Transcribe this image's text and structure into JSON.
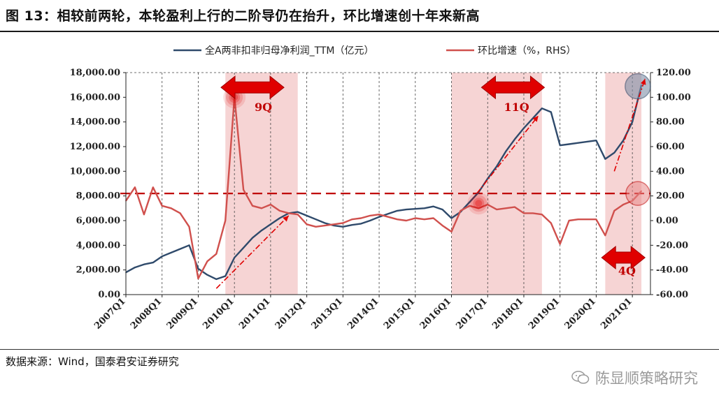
{
  "figure": {
    "title": "图 13：相较前两轮，本轮盈利上行的二阶导仍在抬升，环比增速创十年来新高",
    "source": "数据来源：Wind，国泰君安证券研究",
    "watermark": "陈显顺策略研究"
  },
  "colors": {
    "primary_series": "#2f4a6b",
    "secondary_series": "#d0504d",
    "shading": "#f4cccc",
    "accent": "#e00000"
  },
  "icons": [
    "double-arrow-icon",
    "wechat-icon"
  ],
  "chart_data": {
    "type": "line",
    "x_labels": [
      "2007Q1",
      "2008Q1",
      "2009Q1",
      "2010Q1",
      "2011Q1",
      "2012Q1",
      "2013Q1",
      "2014Q1",
      "2015Q1",
      "2016Q1",
      "2017Q1",
      "2018Q1",
      "2019Q1",
      "2020Q1",
      "2021Q1"
    ],
    "left_axis": {
      "min": 0,
      "max": 18000,
      "ticks": [
        "0.00",
        "2,000.00",
        "4,000.00",
        "6,000.00",
        "8,000.00",
        "10,000.00",
        "12,000.00",
        "14,000.00",
        "16,000.00",
        "18,000.00"
      ]
    },
    "right_axis": {
      "min": -60,
      "max": 120,
      "ticks": [
        "-60.00",
        "-40.00",
        "-20.00",
        "0.00",
        "20.00",
        "40.00",
        "60.00",
        "80.00",
        "100.00",
        "120.00"
      ]
    },
    "series": [
      {
        "name": "全A两非扣非归母净利润_TTM（亿元）",
        "axis": "left",
        "color": "#2f4a6b",
        "points": [
          [
            "2007.00",
            1800
          ],
          [
            "2007.25",
            2200
          ],
          [
            "2007.50",
            2450
          ],
          [
            "2007.75",
            2600
          ],
          [
            "2008.00",
            3100
          ],
          [
            "2008.25",
            3400
          ],
          [
            "2008.50",
            3700
          ],
          [
            "2008.75",
            4000
          ],
          [
            "2009.00",
            2100
          ],
          [
            "2009.25",
            1600
          ],
          [
            "2009.50",
            1250
          ],
          [
            "2009.75",
            1500
          ],
          [
            "2010.00",
            3000
          ],
          [
            "2010.25",
            3800
          ],
          [
            "2010.50",
            4600
          ],
          [
            "2010.75",
            5200
          ],
          [
            "2011.00",
            5700
          ],
          [
            "2011.25",
            6200
          ],
          [
            "2011.50",
            6600
          ],
          [
            "2011.75",
            6700
          ],
          [
            "2012.00",
            6400
          ],
          [
            "2012.25",
            6100
          ],
          [
            "2012.50",
            5800
          ],
          [
            "2012.75",
            5600
          ],
          [
            "2013.00",
            5500
          ],
          [
            "2013.25",
            5650
          ],
          [
            "2013.50",
            5750
          ],
          [
            "2013.75",
            6000
          ],
          [
            "2014.00",
            6300
          ],
          [
            "2014.25",
            6550
          ],
          [
            "2014.50",
            6800
          ],
          [
            "2014.75",
            6900
          ],
          [
            "2015.00",
            6950
          ],
          [
            "2015.25",
            7000
          ],
          [
            "2015.50",
            7150
          ],
          [
            "2015.75",
            6900
          ],
          [
            "2016.00",
            6200
          ],
          [
            "2016.25",
            6700
          ],
          [
            "2016.50",
            7500
          ],
          [
            "2016.75",
            8300
          ],
          [
            "2017.00",
            9400
          ],
          [
            "2017.25",
            10400
          ],
          [
            "2017.50",
            11600
          ],
          [
            "2017.75",
            12600
          ],
          [
            "2018.00",
            13500
          ],
          [
            "2018.25",
            14300
          ],
          [
            "2018.50",
            15100
          ],
          [
            "2018.75",
            14800
          ],
          [
            "2019.00",
            12100
          ],
          [
            "2019.25",
            12200
          ],
          [
            "2019.50",
            12300
          ],
          [
            "2019.75",
            12400
          ],
          [
            "2020.00",
            12500
          ],
          [
            "2020.25",
            11000
          ],
          [
            "2020.50",
            11500
          ],
          [
            "2020.75",
            12500
          ],
          [
            "2021.00",
            14000
          ],
          [
            "2021.25",
            17000
          ]
        ]
      },
      {
        "name": "环比增速（%，RHS）",
        "axis": "right",
        "color": "#d0504d",
        "points": [
          [
            "2007.00",
            16
          ],
          [
            "2007.25",
            27
          ],
          [
            "2007.50",
            5
          ],
          [
            "2007.75",
            27
          ],
          [
            "2008.00",
            12
          ],
          [
            "2008.25",
            10
          ],
          [
            "2008.50",
            6
          ],
          [
            "2008.75",
            -5
          ],
          [
            "2009.00",
            -47
          ],
          [
            "2009.25",
            -33
          ],
          [
            "2009.50",
            -27
          ],
          [
            "2009.75",
            0
          ],
          [
            "2010.00",
            100
          ],
          [
            "2010.25",
            25
          ],
          [
            "2010.50",
            12
          ],
          [
            "2010.75",
            10
          ],
          [
            "2011.00",
            13
          ],
          [
            "2011.25",
            8
          ],
          [
            "2011.50",
            6
          ],
          [
            "2011.75",
            5
          ],
          [
            "2012.00",
            -3
          ],
          [
            "2012.25",
            -5
          ],
          [
            "2012.50",
            -4
          ],
          [
            "2012.75",
            -3
          ],
          [
            "2013.00",
            -2
          ],
          [
            "2013.25",
            1
          ],
          [
            "2013.50",
            2
          ],
          [
            "2013.75",
            4
          ],
          [
            "2014.00",
            5
          ],
          [
            "2014.25",
            3
          ],
          [
            "2014.50",
            1
          ],
          [
            "2014.75",
            0
          ],
          [
            "2015.00",
            2
          ],
          [
            "2015.25",
            1
          ],
          [
            "2015.50",
            2
          ],
          [
            "2015.75",
            -4
          ],
          [
            "2016.00",
            -9
          ],
          [
            "2016.25",
            8
          ],
          [
            "2016.50",
            12
          ],
          [
            "2016.75",
            10
          ],
          [
            "2017.00",
            13
          ],
          [
            "2017.25",
            9
          ],
          [
            "2017.50",
            10
          ],
          [
            "2017.75",
            11
          ],
          [
            "2018.00",
            6
          ],
          [
            "2018.25",
            6
          ],
          [
            "2018.50",
            5
          ],
          [
            "2018.75",
            -2
          ],
          [
            "2019.00",
            -19
          ],
          [
            "2019.25",
            0
          ],
          [
            "2019.50",
            1
          ],
          [
            "2019.75",
            1
          ],
          [
            "2020.00",
            1
          ],
          [
            "2020.25",
            -12
          ],
          [
            "2020.50",
            8
          ],
          [
            "2020.75",
            13
          ],
          [
            "2021.00",
            16
          ],
          [
            "2021.25",
            24
          ]
        ]
      }
    ],
    "reference_line": {
      "axis": "right",
      "value": 22
    },
    "shaded_periods": [
      [
        "2009.75",
        "2011.75"
      ],
      [
        "2016.0",
        "2018.5"
      ],
      [
        "2020.25",
        "2021.25"
      ]
    ],
    "annotations": [
      "9Q",
      "11Q",
      "4Q"
    ]
  }
}
